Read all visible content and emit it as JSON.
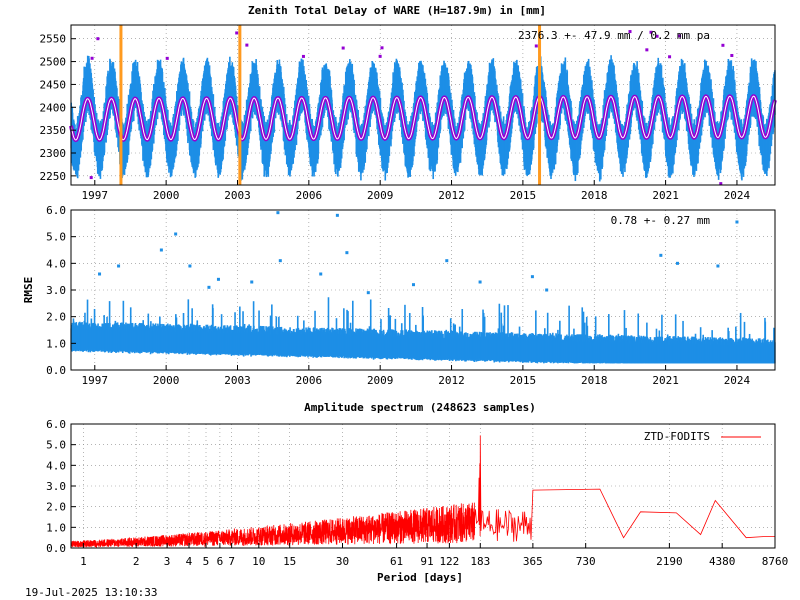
{
  "footer": {
    "timestamp": "19-Jul-2025 13:10:33"
  },
  "colors": {
    "data": "#1E8FE6",
    "model": "#9400D3",
    "event": "#FF9A1F",
    "spectrum": "#FF0000"
  },
  "chart_data": [
    {
      "type": "scatter",
      "title": "Zenith Total Delay of WARE (H=187.9m) in [mm]",
      "annotation": "2376.3 +-  47.9 mm /  0.2 mm pa",
      "xlabel": "",
      "ylabel": "",
      "xlim": [
        1996.0,
        2025.6
      ],
      "ylim": [
        2230,
        2580
      ],
      "xticks": [
        1997,
        2000,
        2003,
        2006,
        2009,
        2012,
        2015,
        2018,
        2021,
        2024
      ],
      "yticks": [
        2250,
        2300,
        2350,
        2400,
        2450,
        2500,
        2550
      ],
      "series": [
        {
          "role": "observations",
          "mean": 2376.3,
          "annual_amplitude": 70,
          "spread": 45
        },
        {
          "role": "seasonal-model",
          "mean": 2376.3,
          "annual_amplitude": 45,
          "trend_mm_per_year": 0.2
        }
      ],
      "event_lines_x": [
        1998.1,
        2003.1,
        2015.7
      ],
      "grid": true
    },
    {
      "type": "scatter",
      "title": "",
      "annotation": "0.78 +-  0.27 mm",
      "xlabel": "",
      "ylabel": "RMSE",
      "xlim": [
        1996.0,
        2025.6
      ],
      "ylim": [
        0.0,
        6.0
      ],
      "xticks": [
        1997,
        2000,
        2003,
        2006,
        2009,
        2012,
        2015,
        2018,
        2021,
        2024
      ],
      "yticks": [
        "0.0",
        "1.0",
        "2.0",
        "3.0",
        "4.0",
        "5.0",
        "6.0"
      ],
      "series": [
        {
          "role": "rmse",
          "level_1996": 1.2,
          "level_2025": 0.55
        }
      ],
      "outliers": [
        {
          "x": 2004.7,
          "y": 5.9
        },
        {
          "x": 2007.2,
          "y": 5.8
        },
        {
          "x": 2000.4,
          "y": 5.1
        },
        {
          "x": 1999.8,
          "y": 4.5
        },
        {
          "x": 2020.8,
          "y": 4.3
        },
        {
          "x": 2007.6,
          "y": 4.4
        },
        {
          "x": 2004.8,
          "y": 4.1
        },
        {
          "x": 2021.5,
          "y": 4.0
        },
        {
          "x": 2011.8,
          "y": 4.1
        },
        {
          "x": 2001.0,
          "y": 3.9
        },
        {
          "x": 1998.0,
          "y": 3.9
        },
        {
          "x": 2023.2,
          "y": 3.9
        },
        {
          "x": 1997.2,
          "y": 3.6
        },
        {
          "x": 2006.5,
          "y": 3.6
        },
        {
          "x": 2015.4,
          "y": 3.5
        },
        {
          "x": 2013.2,
          "y": 3.3
        },
        {
          "x": 2002.2,
          "y": 3.4
        },
        {
          "x": 2024.0,
          "y": 5.55
        },
        {
          "x": 2003.6,
          "y": 3.3
        },
        {
          "x": 2008.5,
          "y": 2.9
        },
        {
          "x": 2001.8,
          "y": 3.1
        },
        {
          "x": 2016.0,
          "y": 3.0
        },
        {
          "x": 2010.4,
          "y": 3.2
        }
      ],
      "grid": true
    },
    {
      "type": "line",
      "title": "Amplitude spectrum (248623 samples)",
      "xlabel": "Period [days]",
      "ylabel": "",
      "scale_x": "log",
      "xlim": [
        0.85,
        8760
      ],
      "ylim": [
        0.0,
        6.0
      ],
      "xticks": [
        1,
        2,
        3,
        4,
        5,
        6,
        7,
        10,
        15,
        30,
        61,
        91,
        122,
        183,
        365,
        730,
        2190,
        4380,
        8760
      ],
      "yticks": [
        "0.0",
        "1.0",
        "2.0",
        "3.0",
        "4.0",
        "5.0",
        "6.0"
      ],
      "series": [
        {
          "name": "ZTD-FODITS"
        }
      ],
      "peaks": [
        {
          "x": 183,
          "y": 5.45
        },
        {
          "x": 182,
          "y": 4.1
        },
        {
          "x": 180,
          "y": 3.4
        },
        {
          "x": 365,
          "y": 2.8
        },
        {
          "x": 880,
          "y": 2.85
        },
        {
          "x": 1200,
          "y": 0.5
        },
        {
          "x": 1500,
          "y": 1.75
        },
        {
          "x": 2400,
          "y": 1.7
        },
        {
          "x": 3300,
          "y": 0.65
        },
        {
          "x": 4000,
          "y": 2.3
        },
        {
          "x": 6000,
          "y": 0.5
        },
        {
          "x": 7500,
          "y": 0.55
        },
        {
          "x": 8760,
          "y": 0.55
        }
      ],
      "legend_position": "top-right",
      "grid": true
    }
  ]
}
